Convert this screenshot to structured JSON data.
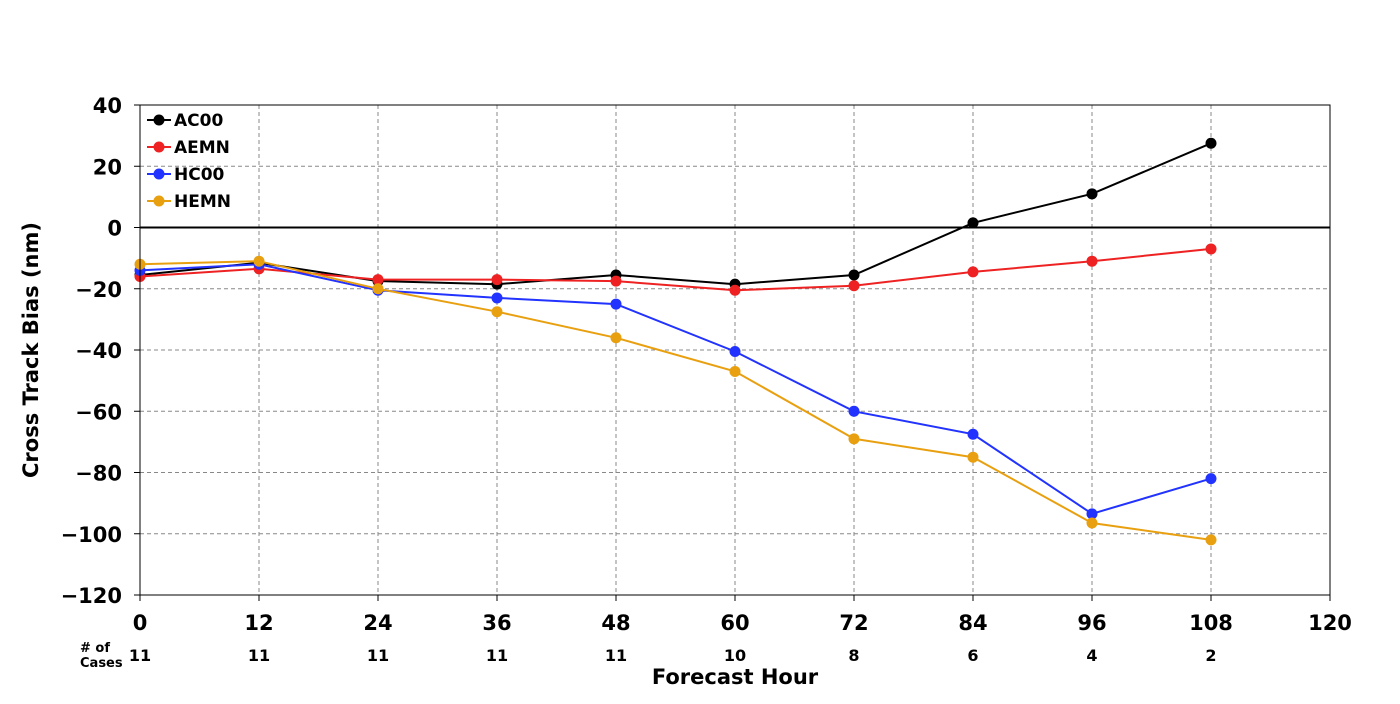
{
  "chart_data": {
    "type": "line",
    "title": "",
    "xlabel": "Forecast Hour",
    "ylabel": "Cross Track Bias (nm)",
    "xlim": [
      0,
      120
    ],
    "ylim": [
      -120,
      40
    ],
    "xticks": [
      0,
      12,
      24,
      36,
      48,
      60,
      72,
      84,
      96,
      108,
      120
    ],
    "yticks": [
      40,
      20,
      0,
      -20,
      -40,
      -60,
      -80,
      -100,
      -120
    ],
    "ytick_labels": [
      "40",
      "20",
      "0",
      "−20",
      "−40",
      "−60",
      "−80",
      "−100",
      "−120"
    ],
    "grid": true,
    "legend_position": "top-left",
    "zero_line": true,
    "cases_label": "# of\nCases",
    "cases": [
      {
        "hour": 0,
        "count": "11"
      },
      {
        "hour": 12,
        "count": "11"
      },
      {
        "hour": 24,
        "count": "11"
      },
      {
        "hour": 36,
        "count": "11"
      },
      {
        "hour": 48,
        "count": "11"
      },
      {
        "hour": 60,
        "count": "10"
      },
      {
        "hour": 72,
        "count": "8"
      },
      {
        "hour": 84,
        "count": "6"
      },
      {
        "hour": 96,
        "count": "4"
      },
      {
        "hour": 108,
        "count": "2"
      }
    ],
    "x": [
      0,
      12,
      24,
      36,
      48,
      60,
      72,
      84,
      96,
      108
    ],
    "series": [
      {
        "name": "AC00",
        "color": "#000000",
        "values": [
          -15.5,
          -11.5,
          -17.5,
          -18.5,
          -15.5,
          -18.5,
          -15.5,
          1.5,
          11.0,
          27.5
        ]
      },
      {
        "name": "AEMN",
        "color": "#ee2222",
        "values": [
          -16.0,
          -13.5,
          -17.0,
          -17.0,
          -17.5,
          -20.5,
          -19.0,
          -14.5,
          -11.0,
          -7.0
        ]
      },
      {
        "name": "HC00",
        "color": "#2233ff",
        "values": [
          -14.0,
          -12.0,
          -20.5,
          -23.0,
          -25.0,
          -40.5,
          -60.0,
          -67.5,
          -93.5,
          -82.0
        ]
      },
      {
        "name": "HEMN",
        "color": "#e8a010",
        "values": [
          -12.0,
          -11.0,
          -20.0,
          -27.5,
          -36.0,
          -47.0,
          -69.0,
          -75.0,
          -96.5,
          -102.0
        ]
      }
    ]
  }
}
